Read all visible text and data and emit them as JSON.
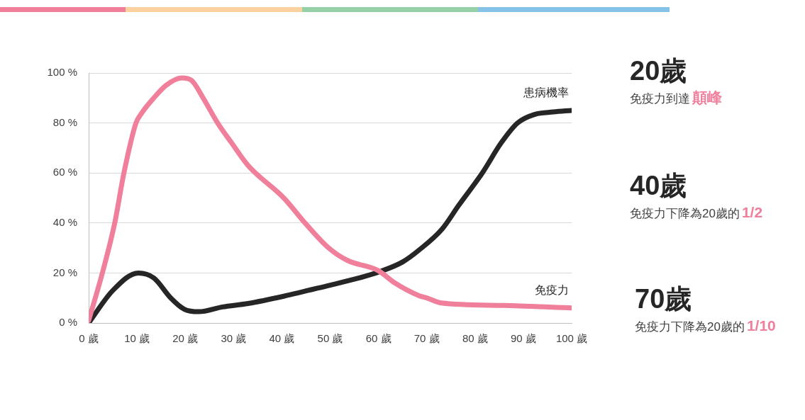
{
  "chart_data": {
    "type": "line",
    "xlim": [
      0,
      100
    ],
    "ylim": [
      0,
      100
    ],
    "xticks": [
      {
        "value": 0,
        "label": "0 歲"
      },
      {
        "value": 10,
        "label": "10 歲"
      },
      {
        "value": 20,
        "label": "20 歲"
      },
      {
        "value": 30,
        "label": "30 歲"
      },
      {
        "value": 40,
        "label": "40 歲"
      },
      {
        "value": 50,
        "label": "50 歲"
      },
      {
        "value": 60,
        "label": "60 歲"
      },
      {
        "value": 70,
        "label": "70 歲"
      },
      {
        "value": 80,
        "label": "80 歲"
      },
      {
        "value": 90,
        "label": "90 歲"
      },
      {
        "value": 100,
        "label": "100 歲"
      }
    ],
    "yticks": [
      {
        "value": 0,
        "label": "0 %"
      },
      {
        "value": 20,
        "label": "20 %"
      },
      {
        "value": 40,
        "label": "40 %"
      },
      {
        "value": 60,
        "label": "60 %"
      },
      {
        "value": 80,
        "label": "80 %"
      },
      {
        "value": 100,
        "label": "100 %"
      }
    ],
    "grid": "y",
    "legend": false,
    "marker": "none",
    "line_style": "solid",
    "series": [
      {
        "name": "免疫力",
        "color": "#ef7f9b",
        "x": [
          0,
          2.7,
          5.4,
          7.3,
          9.8,
          11,
          13.5,
          16,
          19.3,
          21.3,
          23.7,
          26.7,
          29.6,
          33,
          40.4,
          44.8,
          49.7,
          53.6,
          59.9,
          63.4,
          68.3,
          70,
          73,
          86,
          100
        ],
        "values": [
          1,
          19,
          40,
          60,
          80,
          84,
          90,
          95,
          98,
          97,
          90,
          80,
          72,
          63,
          50,
          40,
          30,
          25,
          21,
          16,
          11,
          10,
          8,
          7,
          6
        ]
      },
      {
        "name": "患病機率",
        "color": "#262626",
        "x": [
          0,
          5,
          10.3,
          13.5,
          17,
          19.8,
          22.8,
          27.7,
          33,
          40.4,
          49.7,
          56,
          60.4,
          65,
          68.3,
          73.2,
          76.6,
          81.5,
          85.4,
          88.8,
          92.3,
          96.2,
          100
        ],
        "values": [
          0,
          13,
          20,
          18,
          10,
          5.5,
          4.5,
          6.4,
          7.8,
          10.7,
          15,
          18,
          20.6,
          24.4,
          29,
          37.6,
          47,
          60,
          72,
          80,
          83.4,
          84.4,
          85
        ]
      }
    ],
    "annotations": [
      "20歲",
      "免疫力到達",
      "顛峰",
      "40歲",
      "免疫力下降為20歲的",
      "1/2",
      "70歲",
      "免疫力下降為20歲的",
      "1/10"
    ]
  }
}
